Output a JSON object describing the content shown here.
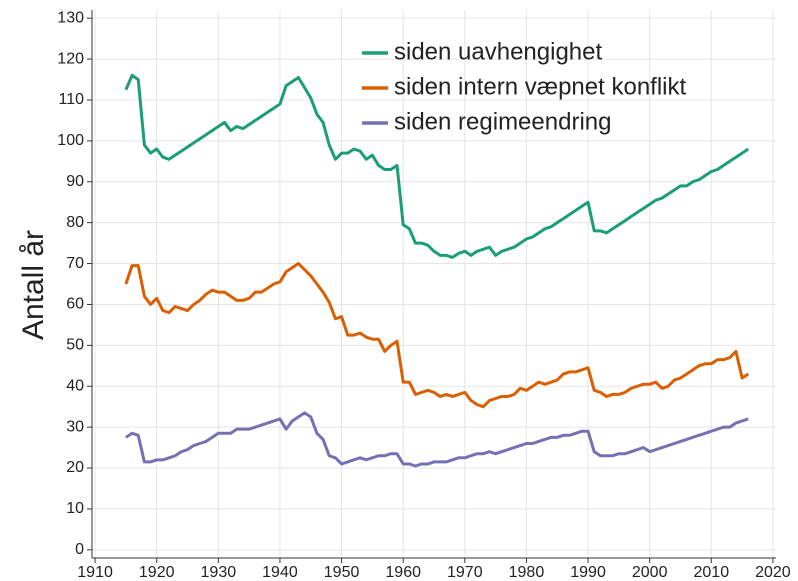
{
  "chart_data": {
    "type": "line",
    "y_label": "Antall år",
    "x": [
      1915,
      1916,
      1917,
      1918,
      1919,
      1920,
      1921,
      1922,
      1923,
      1924,
      1925,
      1926,
      1927,
      1928,
      1929,
      1930,
      1931,
      1932,
      1933,
      1934,
      1935,
      1936,
      1937,
      1938,
      1939,
      1940,
      1941,
      1942,
      1943,
      1944,
      1945,
      1946,
      1947,
      1948,
      1949,
      1950,
      1951,
      1952,
      1953,
      1954,
      1955,
      1956,
      1957,
      1958,
      1959,
      1960,
      1961,
      1962,
      1963,
      1964,
      1965,
      1966,
      1967,
      1968,
      1969,
      1970,
      1971,
      1972,
      1973,
      1974,
      1975,
      1976,
      1977,
      1978,
      1979,
      1980,
      1981,
      1982,
      1983,
      1984,
      1985,
      1986,
      1987,
      1988,
      1989,
      1990,
      1991,
      1992,
      1993,
      1994,
      1995,
      1996,
      1997,
      1998,
      1999,
      2000,
      2001,
      2002,
      2003,
      2004,
      2005,
      2006,
      2007,
      2008,
      2009,
      2010,
      2011,
      2012,
      2013,
      2014,
      2015,
      2016
    ],
    "series": [
      {
        "name": "siden uavhengighet",
        "color": "#1b9e77",
        "values": [
          112.5,
          116,
          115,
          99,
          97,
          98,
          96,
          95.5,
          96.5,
          97.5,
          98.5,
          99.5,
          100.5,
          101.5,
          102.5,
          103.5,
          104.5,
          102.5,
          103.5,
          103,
          104,
          105,
          106,
          107,
          108,
          109,
          113.5,
          114.5,
          115.5,
          113,
          110.5,
          106.5,
          104.5,
          99,
          95.5,
          97,
          97,
          98,
          97.5,
          95.5,
          96.5,
          94,
          93,
          93,
          94,
          79.5,
          78.5,
          75,
          75,
          74.5,
          73,
          72,
          72,
          71.5,
          72.5,
          73,
          72,
          73,
          73.5,
          74,
          72,
          73,
          73.5,
          74,
          75,
          76,
          76.5,
          77.5,
          78.5,
          79,
          80,
          81,
          82,
          83,
          84,
          85,
          78,
          78,
          77.5,
          78.5,
          79.5,
          80.5,
          81.5,
          82.5,
          83.5,
          84.5,
          85.5,
          86,
          87,
          88,
          89,
          89,
          90,
          90.5,
          91.5,
          92.5,
          93,
          94,
          95,
          96,
          97,
          98
        ]
      },
      {
        "name": "siden intern væpnet konflikt",
        "color": "#d95f02",
        "values": [
          65,
          69.5,
          69.5,
          62,
          60,
          61.5,
          58.5,
          58,
          59.5,
          59,
          58.5,
          60,
          61,
          62.5,
          63.5,
          63,
          63,
          62,
          61,
          61,
          61.5,
          63,
          63,
          64,
          65,
          65.5,
          68,
          69,
          70,
          68.5,
          67,
          65,
          63,
          60.5,
          56.5,
          57,
          52.5,
          52.5,
          53,
          52,
          51.5,
          51.5,
          48.5,
          50,
          51,
          41,
          41,
          38,
          38.5,
          39,
          38.5,
          37.5,
          38,
          37.5,
          38,
          38.5,
          36.5,
          35.5,
          35,
          36.5,
          37,
          37.5,
          37.5,
          38,
          39.5,
          39,
          40,
          41,
          40.5,
          41,
          41.5,
          43,
          43.5,
          43.5,
          44,
          44.5,
          39,
          38.5,
          37.5,
          38,
          38,
          38.5,
          39.5,
          40,
          40.5,
          40.5,
          41,
          39.5,
          40,
          41.5,
          42,
          43,
          44,
          45,
          45.5,
          45.5,
          46.5,
          46.5,
          47,
          48.5,
          42,
          43
        ]
      },
      {
        "name": "siden regimeendring",
        "color": "#7570b3",
        "values": [
          27.5,
          28.5,
          28,
          21.5,
          21.5,
          22,
          22,
          22.5,
          23,
          24,
          24.5,
          25.5,
          26,
          26.5,
          27.5,
          28.5,
          28.5,
          28.5,
          29.5,
          29.5,
          29.5,
          30,
          30.5,
          31,
          31.5,
          32,
          29.5,
          31.5,
          32.5,
          33.5,
          32.5,
          28.5,
          27,
          23,
          22.5,
          21,
          21.5,
          22,
          22.5,
          22,
          22.5,
          23,
          23,
          23.5,
          23.5,
          21,
          21,
          20.5,
          21,
          21,
          21.5,
          21.5,
          21.5,
          22,
          22.5,
          22.5,
          23,
          23.5,
          23.5,
          24,
          23.5,
          24,
          24.5,
          25,
          25.5,
          26,
          26,
          26.5,
          27,
          27.5,
          27.5,
          28,
          28,
          28.5,
          29,
          29,
          24,
          23,
          23,
          23,
          23.5,
          23.5,
          24,
          24.5,
          25,
          24,
          24.5,
          25,
          25.5,
          26,
          26.5,
          27,
          27.5,
          28,
          28.5,
          29,
          29.5,
          30,
          30,
          31,
          31.5,
          32
        ]
      }
    ],
    "xlim": [
      1909.5,
      2020.5
    ],
    "xticks": [
      1910,
      1920,
      1930,
      1940,
      1950,
      1960,
      1970,
      1980,
      1990,
      2000,
      2010,
      2020
    ],
    "ylim": [
      -2,
      132
    ],
    "yticks": [
      0,
      10,
      20,
      30,
      40,
      50,
      60,
      70,
      80,
      90,
      100,
      110,
      120,
      130
    ],
    "grid": true,
    "legend": "top right"
  }
}
